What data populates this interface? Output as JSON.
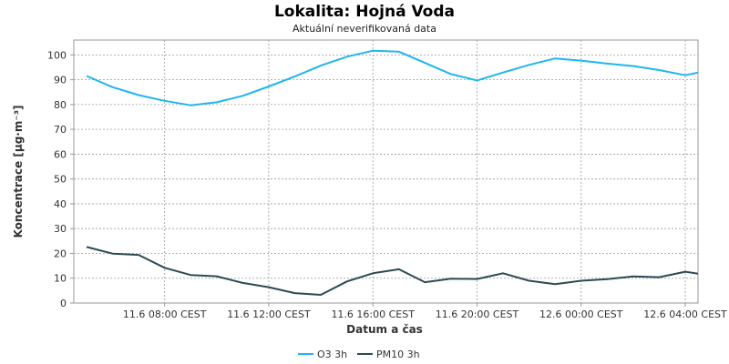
{
  "chart_data": {
    "type": "line",
    "title": "Lokalita: Hojná Voda",
    "subtitle": "Aktuální neverifikovaná data",
    "xlabel": "Datum a čas",
    "ylabel": "Koncentrace [µg·m⁻³]",
    "ylim": [
      0,
      106
    ],
    "yticks": [
      0,
      10,
      20,
      30,
      40,
      50,
      60,
      70,
      80,
      90,
      100
    ],
    "x": [
      "11.6 05:00",
      "11.6 06:00",
      "11.6 07:00",
      "11.6 08:00",
      "11.6 09:00",
      "11.6 10:00",
      "11.6 11:00",
      "11.6 12:00",
      "11.6 13:00",
      "11.6 14:00",
      "11.6 15:00",
      "11.6 16:00",
      "11.6 17:00",
      "11.6 18:00",
      "11.6 19:00",
      "11.6 20:00",
      "11.6 21:00",
      "11.6 22:00",
      "11.6 23:00",
      "12.6 00:00",
      "12.6 01:00",
      "12.6 02:00",
      "12.6 03:00",
      "12.6 04:00",
      "12.6 05:00"
    ],
    "xticks": [
      "11.6 08:00 CEST",
      "11.6 12:00 CEST",
      "11.6 16:00 CEST",
      "11.6 20:00 CEST",
      "12.6 00:00 CEST",
      "12.6 04:00 CEST"
    ],
    "xtick_index": [
      3,
      7,
      11,
      15,
      19,
      23
    ],
    "grid": true,
    "legend_position": "bottom-center",
    "series": [
      {
        "name": "O3 3h",
        "color": "#1fb6ee",
        "values": [
          91.5,
          87,
          83.8,
          81.5,
          79.7,
          80.9,
          83.5,
          87.3,
          91.3,
          95.7,
          99.3,
          101.7,
          101.3,
          96.8,
          92.3,
          89.7,
          92.9,
          96,
          98.6,
          97.7,
          96.5,
          95.5,
          93.9,
          91.8,
          94
        ]
      },
      {
        "name": "PM10 3h",
        "color": "#2c4a52",
        "values": [
          22.6,
          19.9,
          19.4,
          14.2,
          11.3,
          10.8,
          8.1,
          6.4,
          4,
          3.3,
          8.7,
          12,
          13.6,
          8.4,
          9.8,
          9.7,
          12,
          9,
          7.6,
          9,
          9.6,
          10.7,
          10.4,
          12.6,
          11
        ]
      }
    ]
  }
}
